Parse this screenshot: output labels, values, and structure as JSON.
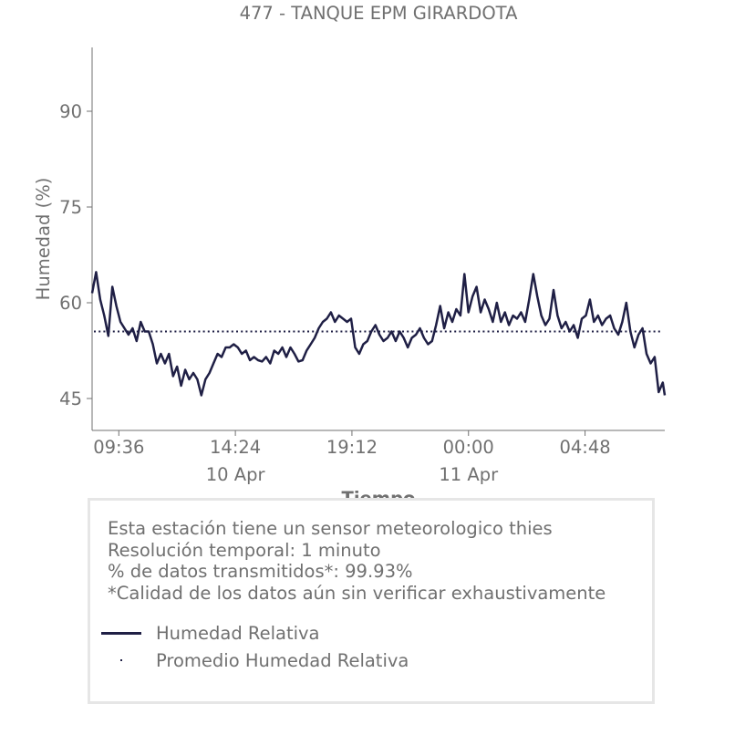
{
  "chart_data": {
    "type": "line",
    "title": "477 - TANQUE EPM GIRARDOTA",
    "xlabel": "Tiempo",
    "ylabel": "Humedad (%)",
    "x_range": [
      "2024-04-10 08:30",
      "2024-04-11 08:05"
    ],
    "ylim": [
      40,
      100
    ],
    "y_ticks": [
      45,
      60,
      75,
      90
    ],
    "x_ticks": [
      {
        "time": "2024-04-10 09:36",
        "label": "09:36",
        "date_label": ""
      },
      {
        "time": "2024-04-10 14:24",
        "label": "14:24",
        "date_label": "10 Apr"
      },
      {
        "time": "2024-04-10 19:12",
        "label": "19:12",
        "date_label": ""
      },
      {
        "time": "2024-04-11 00:00",
        "label": "00:00",
        "date_label": "11 Apr"
      },
      {
        "time": "2024-04-11 04:48",
        "label": "04:48",
        "date_label": ""
      }
    ],
    "grid": false,
    "series": [
      {
        "name": "Humedad Relativa",
        "color": "#1f1f45",
        "style": "solid",
        "points": [
          [
            "2024-04-10 08:30",
            61.5
          ],
          [
            "2024-04-10 08:40",
            64.8
          ],
          [
            "2024-04-10 08:50",
            60.5
          ],
          [
            "2024-04-10 09:00",
            58.0
          ],
          [
            "2024-04-10 09:10",
            54.8
          ],
          [
            "2024-04-10 09:20",
            62.5
          ],
          [
            "2024-04-10 09:30",
            59.5
          ],
          [
            "2024-04-10 09:40",
            57.0
          ],
          [
            "2024-04-10 09:50",
            56.0
          ],
          [
            "2024-04-10 10:00",
            55.0
          ],
          [
            "2024-04-10 10:10",
            56.0
          ],
          [
            "2024-04-10 10:20",
            54.0
          ],
          [
            "2024-04-10 10:30",
            57.0
          ],
          [
            "2024-04-10 10:40",
            55.5
          ],
          [
            "2024-04-10 10:50",
            55.5
          ],
          [
            "2024-04-10 11:00",
            53.5
          ],
          [
            "2024-04-10 11:10",
            50.5
          ],
          [
            "2024-04-10 11:20",
            52.0
          ],
          [
            "2024-04-10 11:30",
            50.5
          ],
          [
            "2024-04-10 11:40",
            52.0
          ],
          [
            "2024-04-10 11:50",
            48.5
          ],
          [
            "2024-04-10 12:00",
            50.0
          ],
          [
            "2024-04-10 12:10",
            47.0
          ],
          [
            "2024-04-10 12:20",
            49.5
          ],
          [
            "2024-04-10 12:30",
            48.0
          ],
          [
            "2024-04-10 12:40",
            49.0
          ],
          [
            "2024-04-10 12:50",
            48.0
          ],
          [
            "2024-04-10 13:00",
            45.5
          ],
          [
            "2024-04-10 13:10",
            48.0
          ],
          [
            "2024-04-10 13:20",
            49.0
          ],
          [
            "2024-04-10 13:30",
            50.5
          ],
          [
            "2024-04-10 13:40",
            52.0
          ],
          [
            "2024-04-10 13:50",
            51.5
          ],
          [
            "2024-04-10 14:00",
            53.0
          ],
          [
            "2024-04-10 14:10",
            53.0
          ],
          [
            "2024-04-10 14:20",
            53.5
          ],
          [
            "2024-04-10 14:30",
            53.0
          ],
          [
            "2024-04-10 14:40",
            52.0
          ],
          [
            "2024-04-10 14:50",
            52.5
          ],
          [
            "2024-04-10 15:00",
            51.0
          ],
          [
            "2024-04-10 15:10",
            51.5
          ],
          [
            "2024-04-10 15:20",
            51.0
          ],
          [
            "2024-04-10 15:30",
            50.8
          ],
          [
            "2024-04-10 15:40",
            51.5
          ],
          [
            "2024-04-10 15:50",
            50.5
          ],
          [
            "2024-04-10 16:00",
            52.5
          ],
          [
            "2024-04-10 16:10",
            52.0
          ],
          [
            "2024-04-10 16:20",
            53.0
          ],
          [
            "2024-04-10 16:30",
            51.5
          ],
          [
            "2024-04-10 16:40",
            53.0
          ],
          [
            "2024-04-10 16:50",
            52.0
          ],
          [
            "2024-04-10 17:00",
            50.8
          ],
          [
            "2024-04-10 17:10",
            51.0
          ],
          [
            "2024-04-10 17:20",
            52.5
          ],
          [
            "2024-04-10 17:30",
            53.5
          ],
          [
            "2024-04-10 17:40",
            54.5
          ],
          [
            "2024-04-10 17:50",
            56.0
          ],
          [
            "2024-04-10 18:00",
            57.0
          ],
          [
            "2024-04-10 18:10",
            57.5
          ],
          [
            "2024-04-10 18:20",
            58.5
          ],
          [
            "2024-04-10 18:30",
            57.0
          ],
          [
            "2024-04-10 18:40",
            58.0
          ],
          [
            "2024-04-10 18:50",
            57.5
          ],
          [
            "2024-04-10 19:00",
            57.0
          ],
          [
            "2024-04-10 19:10",
            57.5
          ],
          [
            "2024-04-10 19:20",
            53.0
          ],
          [
            "2024-04-10 19:30",
            52.0
          ],
          [
            "2024-04-10 19:40",
            53.5
          ],
          [
            "2024-04-10 19:50",
            54.0
          ],
          [
            "2024-04-10 20:00",
            55.5
          ],
          [
            "2024-04-10 20:10",
            56.5
          ],
          [
            "2024-04-10 20:20",
            55.0
          ],
          [
            "2024-04-10 20:30",
            54.0
          ],
          [
            "2024-04-10 20:40",
            54.5
          ],
          [
            "2024-04-10 20:50",
            55.5
          ],
          [
            "2024-04-10 21:00",
            54.0
          ],
          [
            "2024-04-10 21:10",
            55.5
          ],
          [
            "2024-04-10 21:20",
            54.5
          ],
          [
            "2024-04-10 21:30",
            53.0
          ],
          [
            "2024-04-10 21:40",
            54.5
          ],
          [
            "2024-04-10 21:50",
            55.0
          ],
          [
            "2024-04-10 22:00",
            56.0
          ],
          [
            "2024-04-10 22:10",
            54.5
          ],
          [
            "2024-04-10 22:20",
            53.5
          ],
          [
            "2024-04-10 22:30",
            54.0
          ],
          [
            "2024-04-10 22:40",
            56.5
          ],
          [
            "2024-04-10 22:50",
            59.5
          ],
          [
            "2024-04-10 23:00",
            56.0
          ],
          [
            "2024-04-10 23:10",
            58.5
          ],
          [
            "2024-04-10 23:20",
            57.0
          ],
          [
            "2024-04-10 23:30",
            59.0
          ],
          [
            "2024-04-10 23:40",
            58.0
          ],
          [
            "2024-04-10 23:50",
            64.5
          ],
          [
            "2024-04-11 00:00",
            58.5
          ],
          [
            "2024-04-11 00:10",
            61.0
          ],
          [
            "2024-04-11 00:20",
            62.5
          ],
          [
            "2024-04-11 00:30",
            58.5
          ],
          [
            "2024-04-11 00:40",
            60.5
          ],
          [
            "2024-04-11 00:50",
            59.0
          ],
          [
            "2024-04-11 01:00",
            57.0
          ],
          [
            "2024-04-11 01:10",
            60.0
          ],
          [
            "2024-04-11 01:20",
            57.0
          ],
          [
            "2024-04-11 01:30",
            58.5
          ],
          [
            "2024-04-11 01:40",
            56.5
          ],
          [
            "2024-04-11 01:50",
            58.0
          ],
          [
            "2024-04-11 02:00",
            57.5
          ],
          [
            "2024-04-11 02:10",
            58.5
          ],
          [
            "2024-04-11 02:20",
            57.0
          ],
          [
            "2024-04-11 02:30",
            60.5
          ],
          [
            "2024-04-11 02:40",
            64.5
          ],
          [
            "2024-04-11 02:50",
            61.0
          ],
          [
            "2024-04-11 03:00",
            58.0
          ],
          [
            "2024-04-11 03:10",
            56.5
          ],
          [
            "2024-04-11 03:20",
            57.5
          ],
          [
            "2024-04-11 03:30",
            62.0
          ],
          [
            "2024-04-11 03:40",
            58.0
          ],
          [
            "2024-04-11 03:50",
            56.0
          ],
          [
            "2024-04-11 04:00",
            57.0
          ],
          [
            "2024-04-11 04:10",
            55.5
          ],
          [
            "2024-04-11 04:20",
            56.5
          ],
          [
            "2024-04-11 04:30",
            54.5
          ],
          [
            "2024-04-11 04:40",
            57.5
          ],
          [
            "2024-04-11 04:50",
            58.0
          ],
          [
            "2024-04-11 05:00",
            60.5
          ],
          [
            "2024-04-11 05:10",
            57.0
          ],
          [
            "2024-04-11 05:20",
            58.0
          ],
          [
            "2024-04-11 05:30",
            56.5
          ],
          [
            "2024-04-11 05:40",
            57.5
          ],
          [
            "2024-04-11 05:50",
            58.0
          ],
          [
            "2024-04-11 06:00",
            56.0
          ],
          [
            "2024-04-11 06:10",
            55.0
          ],
          [
            "2024-04-11 06:20",
            57.0
          ],
          [
            "2024-04-11 06:30",
            60.0
          ],
          [
            "2024-04-11 06:40",
            55.5
          ],
          [
            "2024-04-11 06:50",
            53.0
          ],
          [
            "2024-04-11 07:00",
            55.0
          ],
          [
            "2024-04-11 07:10",
            56.0
          ],
          [
            "2024-04-11 07:20",
            52.0
          ],
          [
            "2024-04-11 07:30",
            50.5
          ],
          [
            "2024-04-11 07:40",
            51.5
          ],
          [
            "2024-04-11 07:50",
            46.0
          ],
          [
            "2024-04-11 08:00",
            47.5
          ],
          [
            "2024-04-11 08:05",
            45.5
          ]
        ]
      },
      {
        "name": "Promedio Humedad Relativa",
        "color": "#1f1f45",
        "style": "dotted",
        "value": 55.5
      }
    ],
    "legend_placement": "bottom-box"
  },
  "info": {
    "line1": "Esta estación tiene un sensor meteorologico thies",
    "line2": "Resolución temporal: 1 minuto",
    "line3": "% de datos transmitidos*: 99.93%",
    "line4": "*Calidad de los datos aún sin verificar exhaustivamente"
  },
  "legend": {
    "item1": "Humedad Relativa",
    "item2": "Promedio Humedad Relativa"
  },
  "colors": {
    "series": "#1f1f45",
    "text": "#707070",
    "legend_border": "#e6e6e6"
  }
}
